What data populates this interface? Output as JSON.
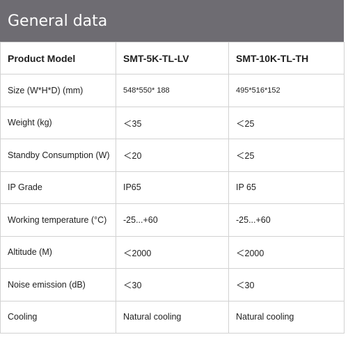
{
  "title": "General data",
  "columns": [
    "Product Model",
    "SMT-5K-TL-LV",
    "SMT-10K-TL-TH"
  ],
  "rows": [
    {
      "label": "Size (W*H*D) (mm)",
      "v1": "548*550* 188",
      "v2": "495*516*152"
    },
    {
      "label": "Weight (kg)",
      "v1": "＜35",
      "v2": "＜25"
    },
    {
      "label": "Standby Consumption (W)",
      "v1": "＜20",
      "v2": "＜25"
    },
    {
      "label": "IP Grade",
      "v1": "IP65",
      "v2": "IP 65"
    },
    {
      "label": "Working temperature (°C)",
      "v1": "-25...+60",
      "v2": "-25...+60"
    },
    {
      "label": "Altitude (M)",
      "v1": "＜2000",
      "v2": "＜2000"
    },
    {
      "label": "Noise emission (dB)",
      "v1": "＜30",
      "v2": "＜30"
    },
    {
      "label": "Cooling",
      "v1": "Natural cooling",
      "v2": "Natural cooling"
    }
  ]
}
